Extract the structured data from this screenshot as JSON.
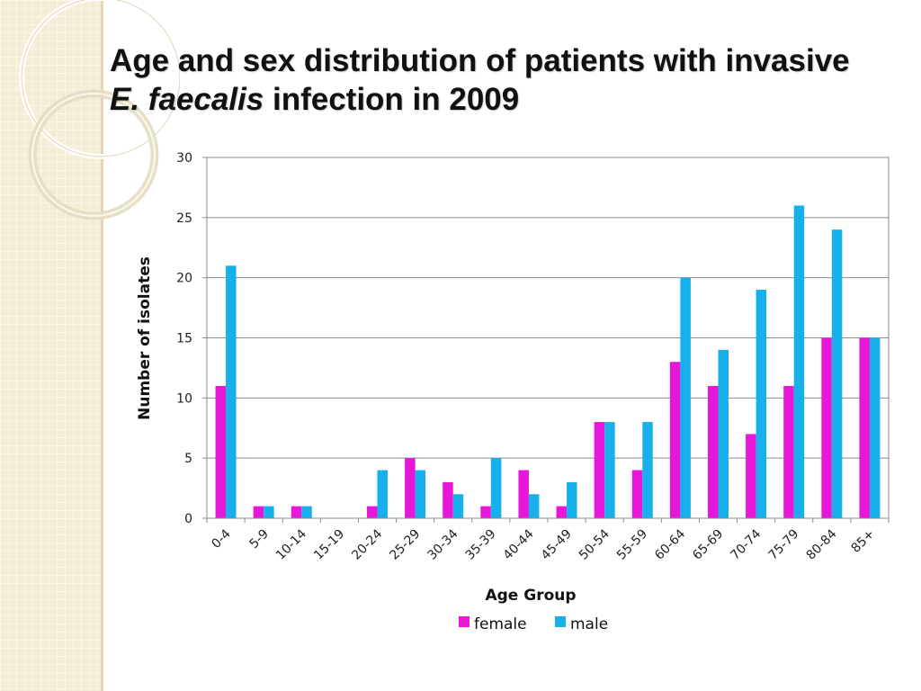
{
  "slide": {
    "title_part1": "Age and sex distribution of patients with invasive",
    "title_italic": "E. faecalis",
    "title_part2": "infection in 2009"
  },
  "chart_data": {
    "type": "bar",
    "categories": [
      "0-4",
      "5-9",
      "10-14",
      "15-19",
      "20-24",
      "25-29",
      "30-34",
      "35-39",
      "40-44",
      "45-49",
      "50-54",
      "55-59",
      "60-64",
      "65-69",
      "70-74",
      "75-79",
      "80-84",
      "85+"
    ],
    "series": [
      {
        "name": "female",
        "color": "#e617d8",
        "values": [
          11,
          1,
          1,
          0,
          1,
          5,
          3,
          1,
          4,
          1,
          8,
          4,
          13,
          11,
          7,
          11,
          15,
          15
        ]
      },
      {
        "name": "male",
        "color": "#17b0ea",
        "values": [
          21,
          1,
          1,
          0,
          4,
          4,
          2,
          5,
          2,
          3,
          8,
          8,
          20,
          14,
          19,
          26,
          24,
          15
        ]
      }
    ],
    "title": "",
    "xlabel": "Age Group",
    "ylabel": "Number of isolates",
    "ylim": [
      0,
      30
    ],
    "yticks": [
      0,
      5,
      10,
      15,
      20,
      25,
      30
    ],
    "grid": true,
    "legend": "bottom"
  }
}
